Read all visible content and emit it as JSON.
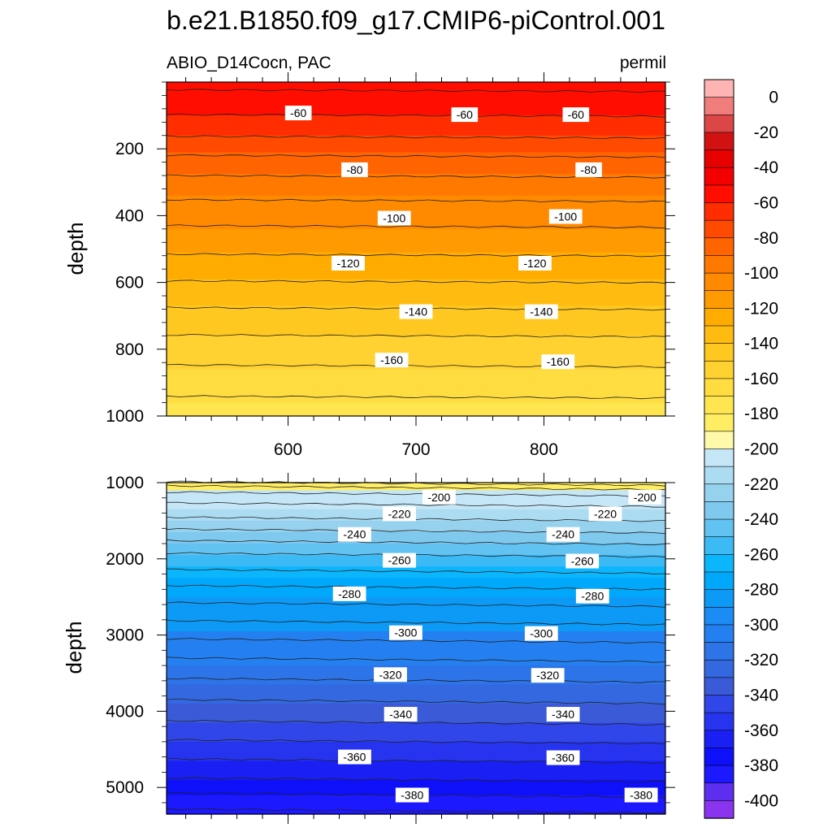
{
  "figure": {
    "title": "b.e21.B1850.f09_g17.CMIP6-piControl.001",
    "left_string": "ABIO_D14Cocn, PAC",
    "right_string": "permil"
  },
  "chart_data": [
    {
      "type": "contour",
      "panel": "upper",
      "variable": "ABIO_D14Cocn",
      "region": "PAC",
      "units": "permil",
      "xlabel": "",
      "ylabel": "depth",
      "xlim": [
        505,
        895
      ],
      "ylim": [
        1000,
        0
      ],
      "x_ticks": [
        600,
        700,
        800
      ],
      "x_tick_labels": [
        "600",
        "700",
        "800"
      ],
      "y_ticks": [
        200,
        400,
        600,
        800,
        1000
      ],
      "y_tick_labels": [
        "200",
        "400",
        "600",
        "800",
        "1000"
      ],
      "depth_levels": [
        0,
        60,
        100,
        130,
        160,
        190,
        210,
        240,
        275,
        305,
        340,
        370,
        410,
        440,
        475,
        510,
        550,
        590,
        630,
        670,
        720,
        760,
        810,
        860,
        910,
        960,
        1000
      ],
      "value_at_depth": [
        -44,
        -58,
        -60,
        -64,
        -69,
        -75,
        -78,
        -83,
        -89,
        -93,
        -98,
        -102,
        -107,
        -111,
        -115,
        -119,
        -124,
        -129,
        -134,
        -139,
        -145,
        -150,
        -156,
        -161,
        -166,
        -172,
        -176
      ],
      "contour_labels": [
        {
          "value": "-60",
          "x": 608,
          "depth": 95
        },
        {
          "value": "-60",
          "x": 738,
          "depth": 100
        },
        {
          "value": "-60",
          "x": 825,
          "depth": 100
        },
        {
          "value": "-80",
          "x": 652,
          "depth": 265
        },
        {
          "value": "-80",
          "x": 835,
          "depth": 265
        },
        {
          "value": "-100",
          "x": 683,
          "depth": 410
        },
        {
          "value": "-100",
          "x": 817,
          "depth": 405
        },
        {
          "value": "-120",
          "x": 647,
          "depth": 545
        },
        {
          "value": "-120",
          "x": 793,
          "depth": 545
        },
        {
          "value": "-140",
          "x": 700,
          "depth": 690
        },
        {
          "value": "-140",
          "x": 798,
          "depth": 690
        },
        {
          "value": "-160",
          "x": 681,
          "depth": 835
        },
        {
          "value": "-160",
          "x": 811,
          "depth": 840
        }
      ]
    },
    {
      "type": "contour",
      "panel": "lower",
      "variable": "ABIO_D14Cocn",
      "region": "PAC",
      "units": "permil",
      "xlabel": "",
      "ylabel": "depth",
      "xlim": [
        505,
        895
      ],
      "ylim": [
        5350,
        1000
      ],
      "y_ticks": [
        1000,
        2000,
        3000,
        4000,
        5000
      ],
      "y_tick_labels": [
        "1000",
        "2000",
        "3000",
        "4000",
        "5000"
      ],
      "depth_levels": [
        1000,
        1100,
        1200,
        1350,
        1500,
        1650,
        1800,
        1950,
        2100,
        2250,
        2500,
        2700,
        2950,
        3200,
        3400,
        3650,
        3900,
        4150,
        4400,
        4650,
        4900,
        5100,
        5350
      ],
      "value_at_depth": [
        -178,
        -196,
        -204,
        -214,
        -221,
        -231,
        -241,
        -250,
        -257,
        -264,
        -276,
        -284,
        -295,
        -305,
        -313,
        -322,
        -331,
        -340,
        -350,
        -360,
        -370,
        -380,
        -392
      ],
      "contour_labels": [
        {
          "value": "-200",
          "x": 718,
          "depth": 1200
        },
        {
          "value": "-200",
          "x": 879,
          "depth": 1200
        },
        {
          "value": "-220",
          "x": 687,
          "depth": 1420
        },
        {
          "value": "-220",
          "x": 848,
          "depth": 1420
        },
        {
          "value": "-240",
          "x": 652,
          "depth": 1690
        },
        {
          "value": "-240",
          "x": 815,
          "depth": 1690
        },
        {
          "value": "-260",
          "x": 687,
          "depth": 2030
        },
        {
          "value": "-260",
          "x": 830,
          "depth": 2040
        },
        {
          "value": "-280",
          "x": 648,
          "depth": 2470
        },
        {
          "value": "-280",
          "x": 838,
          "depth": 2500
        },
        {
          "value": "-300",
          "x": 692,
          "depth": 2980
        },
        {
          "value": "-300",
          "x": 798,
          "depth": 2990
        },
        {
          "value": "-320",
          "x": 680,
          "depth": 3530
        },
        {
          "value": "-320",
          "x": 803,
          "depth": 3540
        },
        {
          "value": "-340",
          "x": 688,
          "depth": 4050
        },
        {
          "value": "-340",
          "x": 815,
          "depth": 4050
        },
        {
          "value": "-360",
          "x": 652,
          "depth": 4610
        },
        {
          "value": "-360",
          "x": 815,
          "depth": 4620
        },
        {
          "value": "-380",
          "x": 697,
          "depth": 5110
        },
        {
          "value": "-380",
          "x": 876,
          "depth": 5110
        }
      ]
    }
  ],
  "colorbar": {
    "labels": [
      "0",
      "-20",
      "-40",
      "-60",
      "-80",
      "-100",
      "-120",
      "-140",
      "-160",
      "-180",
      "-200",
      "-220",
      "-240",
      "-260",
      "-280",
      "-300",
      "-320",
      "-340",
      "-360",
      "-380",
      "-400"
    ],
    "colors": [
      "#ffb4b4",
      "#f07c7c",
      "#dc4646",
      "#d21212",
      "#e60000",
      "#f40000",
      "#ff0e00",
      "#ff2d00",
      "#ff4a00",
      "#ff6400",
      "#ff7800",
      "#ff8a00",
      "#ff9a00",
      "#ffab00",
      "#ffbb10",
      "#ffc820",
      "#ffd232",
      "#ffdc40",
      "#ffe650",
      "#ffee64",
      "#fffaaa",
      "#c4e6f6",
      "#abdcf2",
      "#96d2ee",
      "#7fc8ee",
      "#62c2f2",
      "#3cbaf6",
      "#0cb6fc",
      "#00a8fc",
      "#0c9af6",
      "#1a8cf4",
      "#2480f0",
      "#2c74e8",
      "#3468e0",
      "#3a5ad8",
      "#3046e8",
      "#2634f0",
      "#1a20f4",
      "#0e10fa",
      "#1c18ff",
      "#5e2ef0",
      "#8a34f0"
    ]
  }
}
